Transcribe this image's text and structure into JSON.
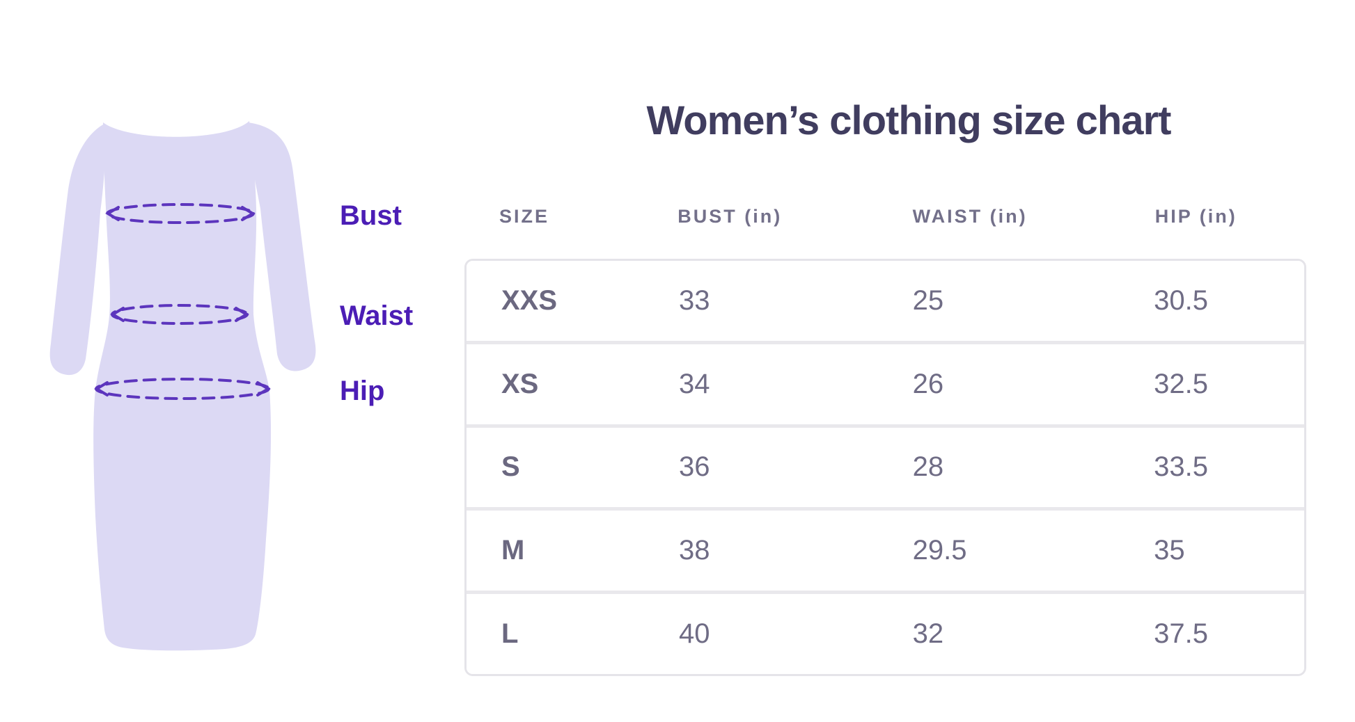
{
  "title": "Women’s clothing size chart",
  "illustration": {
    "type": "dress-silhouette",
    "labels": {
      "bust": "Bust",
      "waist": "Waist",
      "hip": "Hip"
    }
  },
  "table": {
    "headers": [
      "SIZE",
      "BUST (in)",
      "WAIST (in)",
      "HIP (in)"
    ],
    "rows": [
      {
        "size": "XXS",
        "bust": "33",
        "waist": "25",
        "hip": "30.5"
      },
      {
        "size": "XS",
        "bust": "34",
        "waist": "26",
        "hip": "32.5"
      },
      {
        "size": "S",
        "bust": "36",
        "waist": "28",
        "hip": "33.5"
      },
      {
        "size": "M",
        "bust": "38",
        "waist": "29.5",
        "hip": "35"
      },
      {
        "size": "L",
        "bust": "40",
        "waist": "32",
        "hip": "37.5"
      }
    ]
  },
  "chart_data": {
    "type": "table",
    "title": "Women’s clothing size chart",
    "columns": [
      "SIZE",
      "BUST (in)",
      "WAIST (in)",
      "HIP (in)"
    ],
    "rows": [
      [
        "XXS",
        33,
        25,
        30.5
      ],
      [
        "XS",
        34,
        26,
        32.5
      ],
      [
        "S",
        36,
        28,
        33.5
      ],
      [
        "M",
        38,
        29.5,
        35
      ],
      [
        "L",
        40,
        32,
        37.5
      ]
    ],
    "annotations": [
      "Bust",
      "Waist",
      "Hip"
    ]
  },
  "colors": {
    "dress_fill": "#dcd9f4",
    "measure_dash": "#5c35bd",
    "label_purple": "#4b1db5",
    "title_color": "#403d5f",
    "header_text": "#73708a",
    "cell_text": "#6f6c85",
    "table_border": "#e5e4e9"
  }
}
